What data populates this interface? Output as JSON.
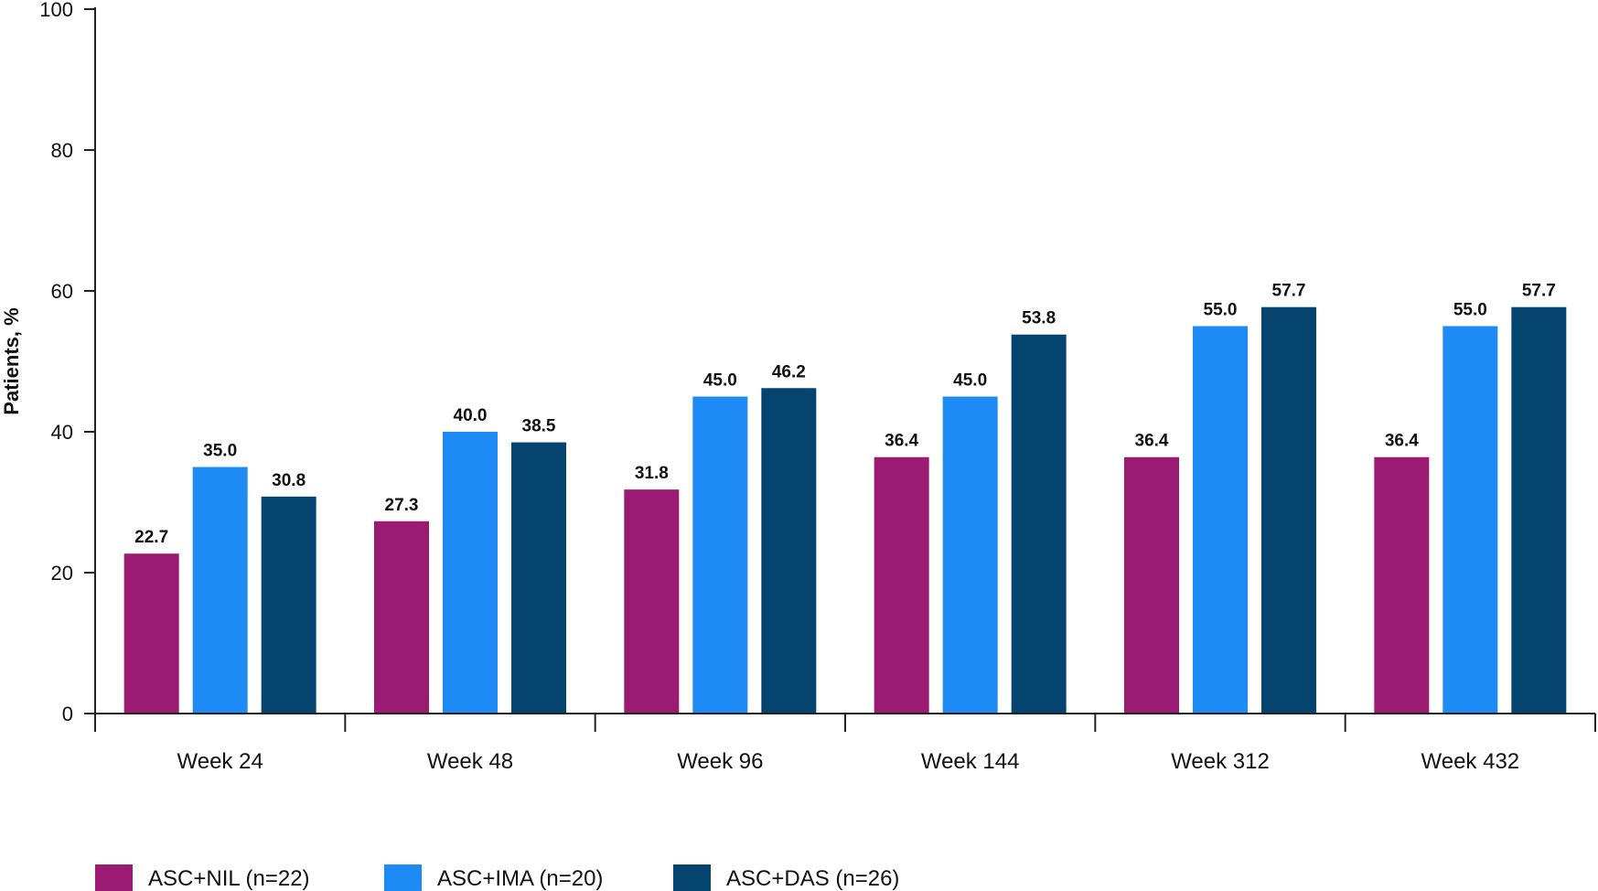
{
  "chart_data": {
    "type": "bar",
    "title": "",
    "xlabel": "",
    "ylabel": "Patients, %",
    "ylim": [
      0,
      100
    ],
    "yticks": [
      0,
      20,
      40,
      60,
      80,
      100
    ],
    "grid": false,
    "legend_position": "bottom-left",
    "categories": [
      "Week 24",
      "Week 48",
      "Week 96",
      "Week 144",
      "Week 312",
      "Week 432"
    ],
    "series": [
      {
        "name": "ASC+NIL (n=22)",
        "color": "#9b1b72",
        "values": [
          22.7,
          27.3,
          31.8,
          36.4,
          36.4,
          36.4
        ],
        "labels": [
          "22.7",
          "27.3",
          "31.8",
          "36.4",
          "36.4",
          "36.4"
        ]
      },
      {
        "name": "ASC+IMA (n=20)",
        "color": "#1e8af5",
        "values": [
          35.0,
          40.0,
          45.0,
          45.0,
          55.0,
          55.0
        ],
        "labels": [
          "35.0",
          "40.0",
          "45.0",
          "45.0",
          "55.0",
          "55.0"
        ]
      },
      {
        "name": "ASC+DAS (n=26)",
        "color": "#05446f",
        "values": [
          30.8,
          38.5,
          46.2,
          53.8,
          57.7,
          57.7
        ],
        "labels": [
          "30.8",
          "38.5",
          "46.2",
          "53.8",
          "57.7",
          "57.7"
        ]
      }
    ]
  }
}
